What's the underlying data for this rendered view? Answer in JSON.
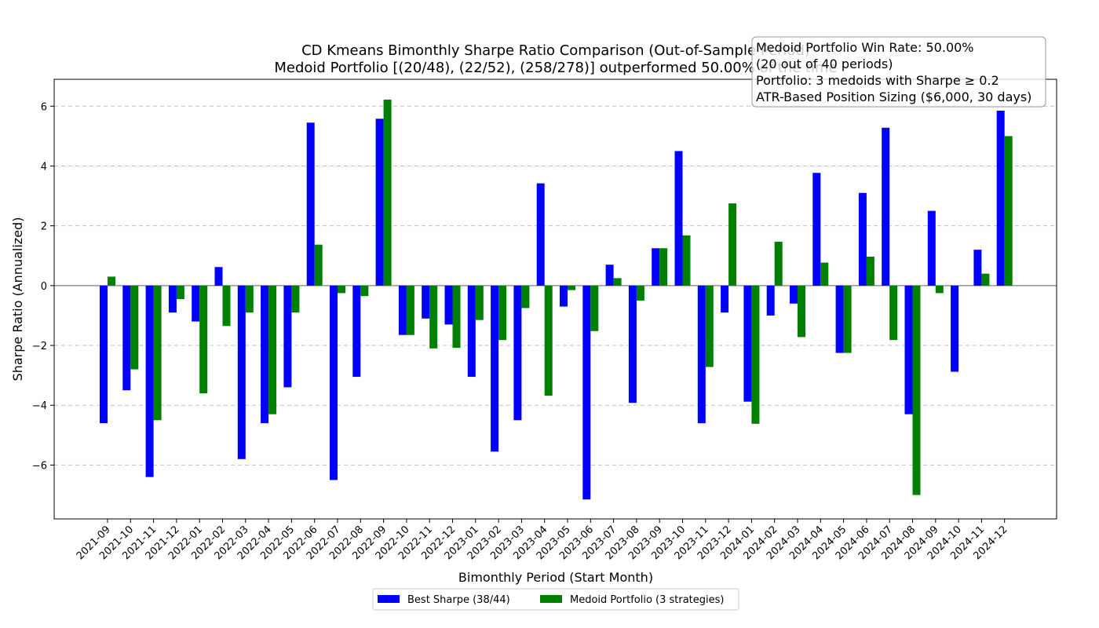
{
  "chart_data": {
    "type": "bar",
    "title_line1": "CD Kmeans Bimonthly Sharpe Ratio Comparison (Out-of-Sample Period)",
    "title_line2": "Medoid Portfolio [(20/48), (22/52), (258/278)] outperformed 50.00% of the time",
    "xlabel": "Bimonthly Period (Start Month)",
    "ylabel": "Sharpe Ratio (Annualized)",
    "ylim": [
      -7.8,
      6.9
    ],
    "yticks": [
      -6,
      -4,
      -2,
      0,
      2,
      4,
      6
    ],
    "grid": "horizontal dashed",
    "legend_position": "bottom-center",
    "categories": [
      "2021-09",
      "2021-10",
      "2021-11",
      "2021-12",
      "2022-01",
      "2022-02",
      "2022-03",
      "2022-04",
      "2022-05",
      "2022-06",
      "2022-07",
      "2022-08",
      "2022-09",
      "2022-10",
      "2022-11",
      "2022-12",
      "2023-01",
      "2023-02",
      "2023-03",
      "2023-04",
      "2023-05",
      "2023-06",
      "2023-07",
      "2023-08",
      "2023-09",
      "2023-10",
      "2023-11",
      "2023-12",
      "2024-01",
      "2024-02",
      "2024-03",
      "2024-04",
      "2024-05",
      "2024-06",
      "2024-07",
      "2024-08",
      "2024-09",
      "2024-10",
      "2024-11",
      "2024-12"
    ],
    "series": [
      {
        "name": "Best Sharpe (38/44)",
        "color": "#0000ff",
        "values": [
          -4.6,
          -3.5,
          -6.4,
          -0.9,
          -1.2,
          0.62,
          -5.8,
          -4.6,
          -3.4,
          5.45,
          -6.5,
          -3.05,
          5.58,
          -1.65,
          -1.1,
          -1.3,
          -3.05,
          -5.55,
          -4.5,
          3.42,
          -0.7,
          -7.15,
          0.7,
          -3.92,
          1.25,
          4.5,
          -4.6,
          -0.9,
          -3.88,
          -1.0,
          -0.6,
          3.77,
          -2.25,
          3.1,
          5.28,
          -4.3,
          2.5,
          -2.88,
          1.2,
          5.85
        ]
      },
      {
        "name": "Medoid Portfolio (3 strategies)",
        "color": "#008000",
        "values": [
          0.3,
          -2.8,
          -4.5,
          -0.45,
          -3.6,
          -1.35,
          -0.9,
          -4.3,
          -0.9,
          1.37,
          -0.25,
          -0.35,
          6.22,
          -1.65,
          -2.1,
          -2.08,
          -1.15,
          -1.82,
          -0.75,
          -3.68,
          -0.15,
          -1.52,
          0.25,
          -0.5,
          1.25,
          1.68,
          -2.72,
          2.75,
          -4.62,
          1.47,
          -1.72,
          0.77,
          -2.25,
          0.97,
          -1.82,
          -7.0,
          -0.25,
          0.0,
          0.4,
          5.0
        ]
      }
    ],
    "info_box": [
      "Medoid Portfolio Win Rate: 50.00%",
      "(20 out of 40 periods)",
      "Portfolio: 3 medoids with Sharpe ≥ 0.2",
      "ATR-Based Position Sizing ($6,000, 30 days)"
    ]
  }
}
